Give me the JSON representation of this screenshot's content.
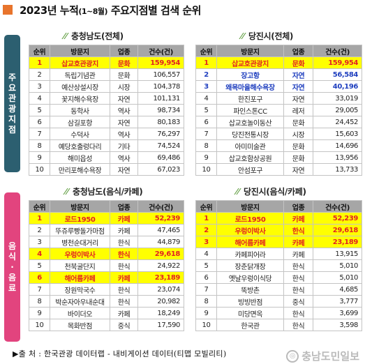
{
  "title": {
    "main": "2023년 누적",
    "period": "(1~8월)",
    "rest": "주요지점별 검색 순위"
  },
  "sidebars": {
    "top": "주요관광지점",
    "bottom": "음식·음료"
  },
  "header": {
    "rank": "순위",
    "name": "방문지",
    "type": "업종",
    "count": "건수(건)"
  },
  "tables": {
    "t1": {
      "title": "충청남도(전체)",
      "rows": [
        {
          "rank": "1",
          "name": "삽교호관광지",
          "type": "문화",
          "count": "159,954",
          "style": "hl"
        },
        {
          "rank": "2",
          "name": "독립기념관",
          "type": "문화",
          "count": "106,557",
          "style": ""
        },
        {
          "rank": "3",
          "name": "예산상설시장",
          "type": "시장",
          "count": "104,378",
          "style": ""
        },
        {
          "rank": "4",
          "name": "꽃지해수욕장",
          "type": "자연",
          "count": "101,131",
          "style": ""
        },
        {
          "rank": "5",
          "name": "동학사",
          "type": "역사",
          "count": "98,734",
          "style": ""
        },
        {
          "rank": "6",
          "name": "삼길포항",
          "type": "자연",
          "count": "80,183",
          "style": ""
        },
        {
          "rank": "7",
          "name": "수덕사",
          "type": "역사",
          "count": "76,297",
          "style": ""
        },
        {
          "rank": "8",
          "name": "예당호출렁다리",
          "type": "기타",
          "count": "74,524",
          "style": ""
        },
        {
          "rank": "9",
          "name": "해미읍성",
          "type": "역사",
          "count": "69,486",
          "style": ""
        },
        {
          "rank": "10",
          "name": "만리포해수욕장",
          "type": "자연",
          "count": "67,023",
          "style": ""
        }
      ]
    },
    "t2": {
      "title": "당진시(전체)",
      "rows": [
        {
          "rank": "1",
          "name": "삽교호관광지",
          "type": "문화",
          "count": "159,954",
          "style": "hl"
        },
        {
          "rank": "2",
          "name": "장고항",
          "type": "자연",
          "count": "56,584",
          "style": "bl"
        },
        {
          "rank": "3",
          "name": "왜목마을해수욕장",
          "type": "자연",
          "count": "40,196",
          "style": "bl"
        },
        {
          "rank": "4",
          "name": "한진포구",
          "type": "자연",
          "count": "33,019",
          "style": ""
        },
        {
          "rank": "5",
          "name": "파인스톤CC",
          "type": "레저",
          "count": "29,005",
          "style": ""
        },
        {
          "rank": "6",
          "name": "삽교호놀이동산",
          "type": "문화",
          "count": "24,452",
          "style": ""
        },
        {
          "rank": "7",
          "name": "당진전통시장",
          "type": "시장",
          "count": "15,603",
          "style": ""
        },
        {
          "rank": "8",
          "name": "아미미술관",
          "type": "문화",
          "count": "14,696",
          "style": ""
        },
        {
          "rank": "9",
          "name": "삽교호함상공원",
          "type": "문화",
          "count": "13,956",
          "style": ""
        },
        {
          "rank": "10",
          "name": "안섬포구",
          "type": "자연",
          "count": "13,733",
          "style": ""
        }
      ]
    },
    "t3": {
      "title": "충청남도(음식/카페)",
      "rows": [
        {
          "rank": "1",
          "name": "로드1950",
          "type": "카페",
          "count": "52,239",
          "style": "hl"
        },
        {
          "rank": "2",
          "name": "뚜쥬루빵돌가마점",
          "type": "카페",
          "count": "47,465",
          "style": ""
        },
        {
          "rank": "3",
          "name": "병천순대거리",
          "type": "한식",
          "count": "44,879",
          "style": ""
        },
        {
          "rank": "4",
          "name": "우렁이박사",
          "type": "한식",
          "count": "29,618",
          "style": "hl"
        },
        {
          "rank": "5",
          "name": "천북굴단지",
          "type": "한식",
          "count": "24,922",
          "style": ""
        },
        {
          "rank": "6",
          "name": "해어름카페",
          "type": "카페",
          "count": "23,189",
          "style": "hl"
        },
        {
          "rank": "7",
          "name": "장원막국수",
          "type": "한식",
          "count": "23,074",
          "style": ""
        },
        {
          "rank": "8",
          "name": "박순자아우내순대",
          "type": "한식",
          "count": "20,982",
          "style": ""
        },
        {
          "rank": "9",
          "name": "바이더오",
          "type": "카페",
          "count": "18,249",
          "style": ""
        },
        {
          "rank": "10",
          "name": "목화반점",
          "type": "중식",
          "count": "17,590",
          "style": ""
        }
      ]
    },
    "t4": {
      "title": "당진시(음식/카페)",
      "rows": [
        {
          "rank": "1",
          "name": "로드1950",
          "type": "카페",
          "count": "52,239",
          "style": "hl"
        },
        {
          "rank": "2",
          "name": "우렁이박사",
          "type": "한식",
          "count": "29,618",
          "style": "hl"
        },
        {
          "rank": "3",
          "name": "해어름카페",
          "type": "카페",
          "count": "23,189",
          "style": "hl"
        },
        {
          "rank": "4",
          "name": "카페피어라",
          "type": "카페",
          "count": "13,915",
          "style": ""
        },
        {
          "rank": "5",
          "name": "장춘닭개장",
          "type": "한식",
          "count": "5,010",
          "style": ""
        },
        {
          "rank": "6",
          "name": "옛날우렁이식당",
          "type": "한식",
          "count": "5,010",
          "style": ""
        },
        {
          "rank": "7",
          "name": "뚝방촌",
          "type": "한식",
          "count": "4,685",
          "style": ""
        },
        {
          "rank": "8",
          "name": "빙빙반점",
          "type": "중식",
          "count": "3,777",
          "style": ""
        },
        {
          "rank": "9",
          "name": "미당면옥",
          "type": "한식",
          "count": "3,699",
          "style": ""
        },
        {
          "rank": "10",
          "name": "한국관",
          "type": "한식",
          "count": "3,598",
          "style": ""
        }
      ]
    }
  },
  "source": "▶출 처 : 한국관광 데이터랩 - 내비게이션 데이터(티맵 모빌리티)",
  "watermark": "충남도민일보",
  "colors": {
    "highlight": "#ffff00",
    "highlight_text": "#e22222",
    "blue_text": "#1f3fbf",
    "header_bg": "#a6a6a6",
    "sidebar_top": "#2c5f70",
    "sidebar_bottom": "#e2447e",
    "title_mark": "#e8742c"
  }
}
